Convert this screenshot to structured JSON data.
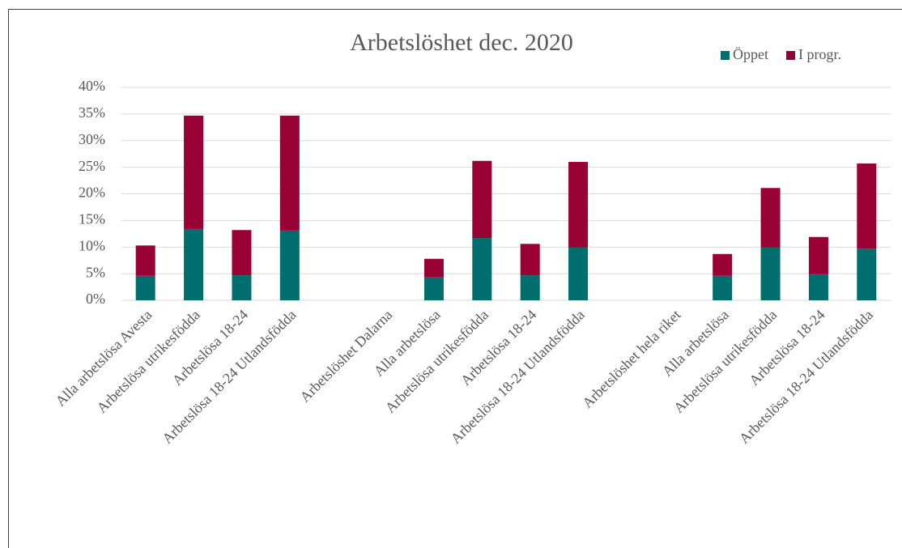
{
  "chart_data": {
    "type": "stacked_bar",
    "title": "Arbetslöshet dec. 2020",
    "categories": [
      "Alla arbetslösa Avesta",
      "Arbetslösa utrikesfödda",
      "Arbetslösa 18-24",
      "Arbetslösa 18-24 Utlandsfödda",
      null,
      "Arbetslöshet Dalarna",
      "Alla arbetslösa",
      "Arbetslösa utrikesfödda",
      "Arbetslösa 18-24",
      "Arbetslösa 18-24 Utlandsfödda",
      null,
      "Arbetslöshet hela riket",
      "Alla arbetslösa",
      "Arbetslösa utrikesfödda",
      "Arbetslösa 18-24",
      "Arbetslösa 18-24 Utlandsfödda"
    ],
    "series": [
      {
        "name": "Öppet",
        "color": "#006d6f",
        "values": [
          4.6,
          13.4,
          4.7,
          13.1,
          null,
          null,
          4.3,
          11.7,
          4.7,
          9.9,
          null,
          null,
          4.6,
          9.9,
          4.9,
          9.7
        ]
      },
      {
        "name": "I progr.",
        "color": "#990033",
        "values": [
          5.7,
          21.3,
          8.5,
          21.6,
          null,
          null,
          3.5,
          14.5,
          5.9,
          16.1,
          null,
          null,
          4.1,
          11.2,
          7.0,
          16.0
        ]
      }
    ],
    "ylim": [
      0,
      40
    ],
    "yticks": [
      {
        "value": 0,
        "label": "0%"
      },
      {
        "value": 5,
        "label": "5%"
      },
      {
        "value": 10,
        "label": "10%"
      },
      {
        "value": 15,
        "label": "15%"
      },
      {
        "value": 20,
        "label": "20%"
      },
      {
        "value": 25,
        "label": "25%"
      },
      {
        "value": 30,
        "label": "30%"
      },
      {
        "value": 35,
        "label": "35%"
      },
      {
        "value": 40,
        "label": "40%"
      }
    ],
    "grid": true,
    "legend": "top-right"
  }
}
